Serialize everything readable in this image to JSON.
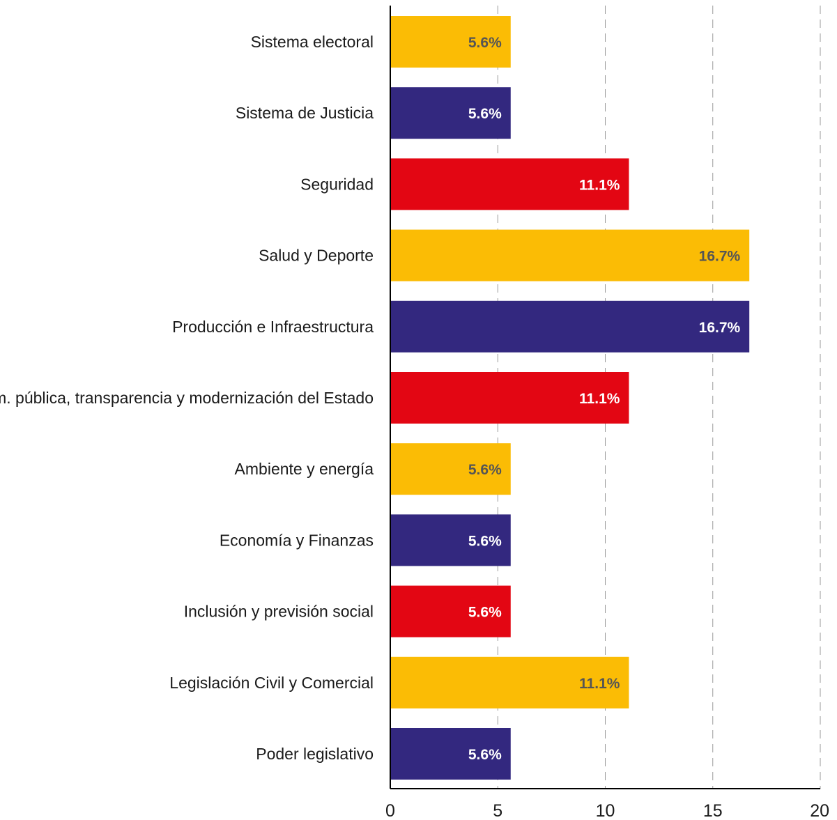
{
  "chart_data": {
    "type": "bar",
    "orientation": "horizontal",
    "categories": [
      "Sistema electoral",
      "Sistema de Justicia",
      "Seguridad",
      "Salud y Deporte",
      "Producción e Infraestructura",
      "Adm. pública, transparencia y modernización del Estado",
      "Ambiente y energía",
      "Economía y Finanzas",
      "Inclusión y previsión social",
      "Legislación Civil y Comercial",
      "Poder legislativo"
    ],
    "values": [
      5.6,
      5.6,
      11.1,
      16.7,
      16.7,
      11.1,
      5.6,
      5.6,
      5.6,
      11.1,
      5.6
    ],
    "value_labels": [
      "5.6%",
      "5.6%",
      "11.1%",
      "16.7%",
      "16.7%",
      "11.1%",
      "5.6%",
      "5.6%",
      "5.6%",
      "11.1%",
      "5.6%"
    ],
    "bar_colors": [
      "#fbbc05",
      "#33287f",
      "#e30613",
      "#fbbc05",
      "#33287f",
      "#e30613",
      "#fbbc05",
      "#33287f",
      "#e30613",
      "#fbbc05",
      "#33287f"
    ],
    "label_colors": [
      "#555555",
      "#ffffff",
      "#ffffff",
      "#555555",
      "#ffffff",
      "#ffffff",
      "#555555",
      "#ffffff",
      "#ffffff",
      "#555555",
      "#ffffff"
    ],
    "title": "",
    "xlabel": "",
    "ylabel": "",
    "xlim": [
      0,
      20
    ],
    "x_ticks": [
      0,
      5,
      10,
      15,
      20
    ],
    "x_tick_labels": [
      "0",
      "5",
      "10",
      "15",
      "20"
    ],
    "grid": "vertical dashed",
    "legend": "none"
  }
}
